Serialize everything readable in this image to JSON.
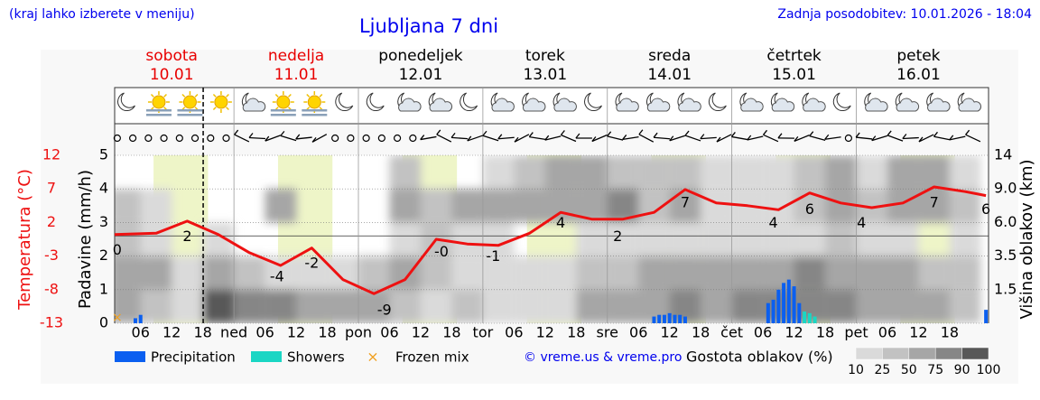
{
  "header": {
    "note": "(kraj lahko izberete v meniju)",
    "updated": "Zadnja posodobitev: 10.01.2026 - 18:04"
  },
  "chart_data": {
    "type": "meteogram",
    "title": "Ljubljana 7 dni",
    "days": [
      {
        "name": "sobota",
        "date": "10.01",
        "color": "#e80000"
      },
      {
        "name": "nedelja",
        "date": "11.01",
        "color": "#e80000"
      },
      {
        "name": "ponedeljek",
        "date": "12.01",
        "color": "#000000"
      },
      {
        "name": "torek",
        "date": "13.01",
        "color": "#000000"
      },
      {
        "name": "sreda",
        "date": "14.01",
        "color": "#000000"
      },
      {
        "name": "četrtek",
        "date": "15.01",
        "color": "#000000"
      },
      {
        "name": "petek",
        "date": "16.01",
        "color": "#000000"
      }
    ],
    "xlim": [
      1,
      169.5
    ],
    "xticks": [
      {
        "value": 6,
        "label": "06"
      },
      12,
      18,
      {
        "value": 24,
        "label": "ned"
      },
      {
        "value": 30,
        "label": "06"
      },
      {
        "value": 36,
        "label": "12"
      },
      {
        "value": 42,
        "label": "18"
      },
      {
        "value": 48,
        "label": "pon"
      },
      {
        "value": 54,
        "label": "06"
      },
      {
        "value": 60,
        "label": "12"
      },
      {
        "value": 66,
        "label": "18"
      },
      {
        "value": 72,
        "label": "tor"
      },
      {
        "value": 78,
        "label": "06"
      },
      {
        "value": 84,
        "label": "12"
      },
      {
        "value": 90,
        "label": "18"
      },
      {
        "value": 96,
        "label": "sre"
      },
      {
        "value": 102,
        "label": "06"
      },
      {
        "value": 108,
        "label": "12"
      },
      {
        "value": 114,
        "label": "18"
      },
      {
        "value": 120,
        "label": "čet"
      },
      {
        "value": 126,
        "label": "06"
      },
      {
        "value": 132,
        "label": "12"
      },
      {
        "value": 138,
        "label": "18"
      },
      {
        "value": 144,
        "label": "pet"
      },
      {
        "value": 150,
        "label": "06"
      },
      {
        "value": 156,
        "label": "12"
      },
      {
        "value": 162,
        "label": "18"
      }
    ],
    "now": 18.07,
    "daylight": [
      [
        8.5,
        19
      ],
      [
        32.5,
        43
      ],
      [
        56.5,
        67
      ],
      [
        80.5,
        91
      ],
      [
        104.5,
        115
      ],
      [
        128.5,
        139
      ],
      [
        152.5,
        163
      ]
    ],
    "ylabel": "Padavine (mm/h)",
    "ylim": [
      0,
      5
    ],
    "yticks": [
      0,
      1,
      2,
      3,
      4,
      5
    ],
    "grid": true,
    "temperature": {
      "label": "Temperatura (°C)",
      "color": "#ee1111",
      "ylim": [
        -13,
        12
      ],
      "yticks": [
        12,
        7,
        2,
        -3,
        -8,
        -13
      ],
      "x": [
        1,
        9,
        15,
        21,
        27,
        33,
        39,
        45,
        51,
        57,
        63,
        69,
        75,
        81,
        87,
        93,
        99,
        105,
        111,
        117,
        123,
        129,
        135,
        141,
        147,
        153,
        159,
        165,
        169
      ],
      "values": [
        0.2,
        0.4,
        2.2,
        0.2,
        -2.5,
        -4.4,
        -1.8,
        -6.5,
        -8.6,
        -6.5,
        -0.5,
        -1.2,
        -1.4,
        0.4,
        3.5,
        2.5,
        2.5,
        3.5,
        6.9,
        4.9,
        4.5,
        3.9,
        6.4,
        4.9,
        4.2,
        4.9,
        7.3,
        6.6,
        6.0
      ],
      "labels": {
        "x": [
          1.5,
          15,
          32.3,
          39,
          53,
          64,
          74,
          87,
          98,
          111,
          128,
          135,
          145,
          159,
          169
        ],
        "values": [
          0,
          2,
          -4,
          -2,
          -9,
          -0.3,
          -1,
          4,
          2,
          7,
          4,
          6,
          4,
          7,
          6
        ],
        "value_labels": [
          "0",
          "2",
          "-4",
          "-2",
          "-9",
          "-0",
          "-1",
          "4",
          "2",
          "7",
          "4",
          "6",
          "4",
          "7",
          "6"
        ]
      }
    },
    "y2label": "Višina oblakov (km)",
    "y2lim": [
      0,
      14
    ],
    "y2ticks": [
      1.5,
      3.5,
      {
        "value": 6,
        "label": "6.0"
      },
      {
        "value": 9,
        "label": "9.0"
      },
      14
    ],
    "series": [
      {
        "name": "Precipitation",
        "color": "#0a5ff0",
        "x": [
          5,
          6,
          105,
          106,
          107,
          108,
          109,
          110,
          111,
          127,
          128,
          129,
          130,
          131,
          132,
          133,
          169
        ],
        "values": [
          0.15,
          0.25,
          0.2,
          0.25,
          0.25,
          0.3,
          0.25,
          0.25,
          0.2,
          0.6,
          0.7,
          1.0,
          1.2,
          1.3,
          1.1,
          0.6,
          0.4
        ]
      },
      {
        "name": "Showers",
        "color": "#1ad6c4",
        "x": [
          134,
          135,
          136
        ],
        "values": [
          0.35,
          0.3,
          0.2
        ]
      },
      {
        "name": "Frozen mix",
        "color": "#f0a020",
        "x": [
          1.5
        ],
        "values": [
          0
        ]
      }
    ],
    "clouds": {
      "label": "Gostota oblakov (%)",
      "x": [
        3,
        9,
        15,
        21,
        27,
        33,
        39,
        45,
        51,
        57,
        63,
        69,
        75,
        81,
        87,
        93,
        99,
        105,
        111,
        117,
        123,
        129,
        135,
        141,
        147,
        153,
        159,
        165
      ],
      "levels": [
        0,
        1.5,
        3.5,
        6,
        9,
        14
      ],
      "values": [
        [
          50,
          30,
          20,
          90,
          85,
          75,
          60,
          70,
          70,
          40,
          20,
          40,
          10,
          10,
          20,
          50,
          50,
          70,
          75,
          60,
          75,
          80,
          85,
          75,
          60,
          50,
          50,
          40
        ],
        [
          70,
          50,
          10,
          60,
          30,
          10,
          10,
          20,
          30,
          50,
          30,
          10,
          10,
          10,
          10,
          25,
          40,
          50,
          60,
          70,
          70,
          60,
          75,
          70,
          60,
          50,
          40,
          30
        ],
        [
          40,
          10,
          0,
          10,
          0,
          0,
          0,
          0,
          0,
          10,
          30,
          10,
          10,
          0,
          0,
          10,
          10,
          10,
          10,
          20,
          10,
          10,
          20,
          30,
          10,
          10,
          0,
          10
        ],
        [
          25,
          10,
          0,
          0,
          0,
          50,
          0,
          0,
          0,
          60,
          40,
          60,
          50,
          60,
          50,
          70,
          75,
          40,
          60,
          10,
          10,
          20,
          30,
          50,
          40,
          50,
          60,
          30
        ],
        [
          0,
          0,
          0,
          0,
          0,
          0,
          0,
          0,
          0,
          30,
          0,
          0,
          10,
          40,
          60,
          60,
          30,
          40,
          40,
          20,
          10,
          20,
          40,
          60,
          20,
          60,
          60,
          10
        ]
      ],
      "scale": [
        10,
        25,
        50,
        75,
        90,
        100
      ],
      "colors": [
        "#dadada",
        "#c2c2c2",
        "#a6a6a6",
        "#868686",
        "#585858"
      ]
    },
    "credit": "© vreme.us & vreme.pro"
  }
}
